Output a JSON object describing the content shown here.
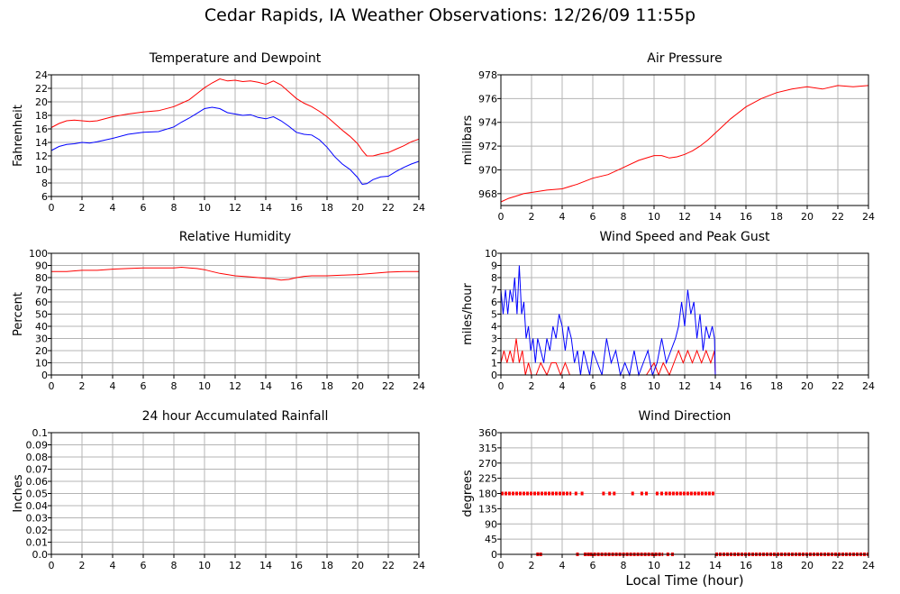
{
  "title": "Cedar Rapids, IA Weather Observations: 12/26/09 11:55p",
  "colors": {
    "primary": "#ff0000",
    "secondary": "#0000ff",
    "grid": "#b4b4b4",
    "frame": "#000000"
  },
  "chart_data": [
    {
      "id": "temp",
      "type": "line",
      "title": "Temperature and Dewpoint",
      "xlabel": "",
      "ylabel": "Fahrenheit",
      "xlim": [
        0,
        24
      ],
      "ylim": [
        6,
        24
      ],
      "xticks": [
        0,
        2,
        4,
        6,
        8,
        10,
        12,
        14,
        16,
        18,
        20,
        22,
        24
      ],
      "yticks": [
        6,
        8,
        10,
        12,
        14,
        16,
        18,
        20,
        22,
        24
      ],
      "grid": true,
      "series": [
        {
          "color": "red",
          "kind": "line",
          "x": [
            0,
            0.5,
            1,
            1.5,
            2,
            2.5,
            3,
            4,
            5,
            6,
            7,
            8,
            8.5,
            9,
            9.5,
            10,
            10.5,
            11,
            11.5,
            12,
            12.5,
            13,
            13.5,
            14,
            14.5,
            15,
            15.5,
            16,
            16.5,
            17,
            17.5,
            18,
            18.5,
            19,
            19.5,
            20,
            20.3,
            20.6,
            21,
            21.5,
            22,
            22.5,
            23,
            23.5,
            24
          ],
          "y": [
            16.2,
            16.8,
            17.2,
            17.3,
            17.2,
            17.1,
            17.2,
            17.8,
            18.2,
            18.5,
            18.7,
            19.3,
            19.8,
            20.3,
            21.2,
            22.1,
            22.8,
            23.4,
            23.1,
            23.2,
            23.0,
            23.1,
            22.9,
            22.6,
            23.1,
            22.5,
            21.5,
            20.5,
            19.8,
            19.3,
            18.6,
            17.8,
            16.8,
            15.8,
            14.9,
            13.8,
            12.8,
            12.0,
            12.0,
            12.3,
            12.5,
            13.0,
            13.5,
            14.1,
            14.5
          ]
        },
        {
          "color": "blue",
          "kind": "line",
          "x": [
            0,
            0.5,
            1,
            1.5,
            2,
            2.5,
            3,
            4,
            5,
            6,
            7,
            8,
            8.5,
            9,
            9.5,
            10,
            10.5,
            11,
            11.5,
            12,
            12.5,
            13,
            13.5,
            14,
            14.5,
            15,
            15.5,
            16,
            16.5,
            17,
            17.5,
            18,
            18.5,
            19,
            19.5,
            20,
            20.3,
            20.6,
            21,
            21.5,
            22,
            22.5,
            23,
            23.5,
            24
          ],
          "y": [
            12.8,
            13.4,
            13.7,
            13.8,
            14.0,
            13.9,
            14.1,
            14.6,
            15.2,
            15.5,
            15.6,
            16.3,
            17.0,
            17.6,
            18.3,
            19.0,
            19.2,
            19.0,
            18.4,
            18.2,
            18.0,
            18.1,
            17.7,
            17.5,
            17.8,
            17.2,
            16.4,
            15.5,
            15.2,
            15.1,
            14.4,
            13.3,
            11.9,
            10.8,
            10.0,
            8.8,
            7.8,
            7.9,
            8.5,
            8.9,
            9.0,
            9.7,
            10.3,
            10.8,
            11.2
          ]
        }
      ]
    },
    {
      "id": "pressure",
      "type": "line",
      "title": "Air Pressure",
      "xlabel": "",
      "ylabel": "millibars",
      "xlim": [
        0,
        24
      ],
      "ylim": [
        967,
        978
      ],
      "xticks": [
        0,
        2,
        4,
        6,
        8,
        10,
        12,
        14,
        16,
        18,
        20,
        22,
        24
      ],
      "yticks": [
        968,
        970,
        972,
        974,
        976,
        978
      ],
      "grid": true,
      "series": [
        {
          "color": "red",
          "kind": "line",
          "x": [
            0,
            0.5,
            1,
            1.5,
            2,
            3,
            4,
            5,
            6,
            7,
            8,
            9,
            10,
            10.5,
            11,
            11.5,
            12,
            12.5,
            13,
            13.5,
            14,
            15,
            16,
            17,
            18,
            19,
            20,
            21,
            22,
            23,
            24
          ],
          "y": [
            967.3,
            967.6,
            967.8,
            968.0,
            968.1,
            968.3,
            968.4,
            968.8,
            969.3,
            969.6,
            970.2,
            970.8,
            971.2,
            971.2,
            971.0,
            971.1,
            971.3,
            971.6,
            972.0,
            972.5,
            973.1,
            974.3,
            975.3,
            976.0,
            976.5,
            976.8,
            977.0,
            976.8,
            977.1,
            977.0,
            977.1
          ]
        }
      ]
    },
    {
      "id": "humidity",
      "type": "line",
      "title": "Relative Humidity",
      "xlabel": "",
      "ylabel": "Percent",
      "xlim": [
        0,
        24
      ],
      "ylim": [
        0,
        100
      ],
      "xticks": [
        0,
        2,
        4,
        6,
        8,
        10,
        12,
        14,
        16,
        18,
        20,
        22,
        24
      ],
      "yticks": [
        0,
        10,
        20,
        30,
        40,
        50,
        60,
        70,
        80,
        90,
        100
      ],
      "grid": true,
      "series": [
        {
          "color": "red",
          "kind": "line",
          "x": [
            0,
            1,
            2,
            3,
            4,
            5,
            6,
            7,
            8,
            8.5,
            9,
            9.5,
            10,
            10.5,
            11,
            11.5,
            12,
            12.5,
            13,
            13.5,
            14,
            14.5,
            15,
            15.5,
            16,
            16.5,
            17,
            18,
            19,
            20,
            21,
            22,
            23,
            24
          ],
          "y": [
            85,
            85,
            86,
            86,
            87,
            87.5,
            88,
            88,
            88,
            88.5,
            88,
            87.5,
            86.5,
            85,
            83.5,
            82.5,
            81.5,
            81,
            80.5,
            80,
            79.5,
            79,
            78,
            78.5,
            80,
            81,
            81.5,
            81.5,
            82,
            82.5,
            83.5,
            84.5,
            85,
            85
          ]
        }
      ]
    },
    {
      "id": "wind",
      "type": "line",
      "title": "Wind Speed and Peak Gust",
      "xlabel": "",
      "ylabel": "miles/hour",
      "xlim": [
        0,
        24
      ],
      "ylim": [
        0,
        10
      ],
      "xticks": [
        0,
        2,
        4,
        6,
        8,
        10,
        12,
        14,
        16,
        18,
        20,
        22,
        24
      ],
      "yticks": [
        0,
        1,
        2,
        3,
        4,
        5,
        6,
        7,
        8,
        9,
        10
      ],
      "grid": true,
      "series": [
        {
          "color": "red",
          "kind": "line",
          "x": [
            0,
            0.2,
            0.4,
            0.6,
            0.8,
            1.0,
            1.2,
            1.4,
            1.6,
            1.8,
            2.0,
            2.3,
            2.6,
            3.0,
            3.3,
            3.6,
            3.9,
            4.2,
            4.5,
            4.8,
            5.5,
            6.5,
            7.5,
            8.5,
            9.5,
            10.0,
            10.3,
            10.6,
            11.0,
            11.3,
            11.6,
            11.9,
            12.2,
            12.5,
            12.8,
            13.1,
            13.4,
            13.7,
            13.95,
            14.0,
            14.5,
            24
          ],
          "y": [
            1,
            2,
            1,
            2,
            1,
            3,
            1,
            2,
            0,
            1,
            0,
            0,
            1,
            0,
            1,
            1,
            0,
            1,
            0,
            0,
            0,
            0,
            0,
            0,
            0,
            1,
            0,
            1,
            0,
            1,
            2,
            1,
            2,
            1,
            2,
            1,
            2,
            1,
            2,
            0,
            0,
            0
          ]
        },
        {
          "color": "blue",
          "kind": "line",
          "x": [
            0,
            0.15,
            0.3,
            0.45,
            0.6,
            0.75,
            0.9,
            1.05,
            1.2,
            1.35,
            1.5,
            1.65,
            1.8,
            1.95,
            2.1,
            2.25,
            2.4,
            2.6,
            2.8,
            3.0,
            3.2,
            3.4,
            3.6,
            3.8,
            4.0,
            4.2,
            4.4,
            4.6,
            4.8,
            5.0,
            5.2,
            5.4,
            5.6,
            5.8,
            6.0,
            6.3,
            6.6,
            6.9,
            7.2,
            7.5,
            7.8,
            8.1,
            8.4,
            8.7,
            9.0,
            9.3,
            9.6,
            9.9,
            10.2,
            10.5,
            10.8,
            11.1,
            11.4,
            11.6,
            11.8,
            12.0,
            12.2,
            12.4,
            12.6,
            12.8,
            13.0,
            13.2,
            13.4,
            13.6,
            13.8,
            13.95,
            14.0,
            24
          ],
          "y": [
            7,
            5,
            7,
            5,
            7,
            6,
            8,
            5,
            9,
            5,
            6,
            3,
            4,
            2,
            3,
            1,
            3,
            2,
            1,
            3,
            2,
            4,
            3,
            5,
            4,
            2,
            4,
            3,
            1,
            2,
            0,
            2,
            1,
            0,
            2,
            1,
            0,
            3,
            1,
            2,
            0,
            1,
            0,
            2,
            0,
            1,
            2,
            0,
            1,
            3,
            1,
            2,
            3,
            4,
            6,
            4,
            7,
            5,
            6,
            3,
            5,
            2,
            4,
            3,
            4,
            3,
            0,
            0
          ]
        }
      ]
    },
    {
      "id": "rain",
      "type": "line",
      "title": "24 hour Accumulated Rainfall",
      "xlabel": "",
      "ylabel": "Inches",
      "xlim": [
        0,
        24
      ],
      "ylim": [
        0,
        0.1
      ],
      "xticks": [
        0,
        2,
        4,
        6,
        8,
        10,
        12,
        14,
        16,
        18,
        20,
        22,
        24
      ],
      "yticks": [
        "0.0",
        "0.01",
        "0.02",
        "0.03",
        "0.04",
        "0.05",
        "0.06",
        "0.07",
        "0.08",
        "0.09",
        "0.1"
      ],
      "grid": true,
      "series": [
        {
          "color": "red",
          "kind": "line",
          "x": [
            0,
            24
          ],
          "y": [
            0,
            0
          ]
        }
      ]
    },
    {
      "id": "direction",
      "type": "scatter",
      "title": "Wind Direction",
      "xlabel": "Local Time (hour)",
      "ylabel": "degrees",
      "xlim": [
        0,
        24
      ],
      "ylim": [
        0,
        360
      ],
      "xticks": [
        0,
        2,
        4,
        6,
        8,
        10,
        12,
        14,
        16,
        18,
        20,
        22,
        24
      ],
      "yticks": [
        0,
        45,
        90,
        135,
        180,
        225,
        270,
        315,
        360
      ],
      "grid": true,
      "series": [
        {
          "color": "red",
          "kind": "points",
          "segments": [
            [
              0,
              4.6,
              180
            ],
            [
              10.7,
              14.0,
              180
            ],
            [
              14.0,
              24,
              0
            ],
            [
              5.8,
              10.6,
              0
            ]
          ],
          "x": [
            4.9,
            5.3,
            6.7,
            7.1,
            7.4,
            8.6,
            9.2,
            9.5,
            10.2,
            10.5,
            2.4,
            2.6,
            5.0,
            5.5,
            5.7,
            10.9,
            11.2
          ],
          "y": [
            180,
            180,
            180,
            180,
            180,
            180,
            180,
            180,
            180,
            180,
            0,
            0,
            0,
            0,
            0,
            0,
            0
          ]
        }
      ]
    }
  ]
}
